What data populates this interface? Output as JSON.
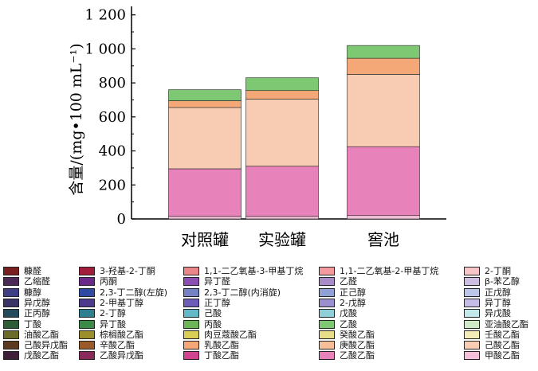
{
  "chart_data": {
    "type": "bar",
    "stacked": true,
    "categories": [
      "对照罐",
      "实验罐",
      "窖池"
    ],
    "ylabel": "含量/(mg•100 mL⁻¹)",
    "ylim": [
      0,
      1250
    ],
    "yticks": [
      0,
      200,
      400,
      600,
      800,
      1000,
      1200
    ],
    "ytick_labels": [
      "0",
      "200",
      "400",
      "600",
      "800",
      "1 000",
      "1 200"
    ],
    "grid": false,
    "legend_position": "bottom",
    "legend_columns": 5,
    "series": [
      {
        "name": "糠醛",
        "color": "#7a1f1f",
        "values": [
          0,
          0,
          0
        ]
      },
      {
        "name": "3-羟基-2-丁酮",
        "color": "#a21d3c",
        "values": [
          0,
          0,
          0
        ]
      },
      {
        "name": "1,1-二乙氧基-3-甲基丁烷",
        "color": "#e8868a",
        "values": [
          0,
          0,
          0
        ]
      },
      {
        "name": "1,1-二乙氧基-2-甲基丁烷",
        "color": "#f29a9e",
        "values": [
          0,
          0,
          0
        ]
      },
      {
        "name": "2-丁酮",
        "color": "#f8c6c8",
        "values": [
          0,
          0,
          0
        ]
      },
      {
        "name": "乙缩醛",
        "color": "#4b2a57",
        "values": [
          0,
          0,
          0
        ]
      },
      {
        "name": "丙酮",
        "color": "#6a2a8a",
        "values": [
          0,
          0,
          0
        ]
      },
      {
        "name": "异丁醛",
        "color": "#8a4fb0",
        "values": [
          0,
          0,
          0
        ]
      },
      {
        "name": "乙醛",
        "color": "#a98bc9",
        "values": [
          0,
          0,
          0
        ]
      },
      {
        "name": "β-苯乙醇",
        "color": "#ccbfe2",
        "values": [
          0,
          0,
          0
        ]
      },
      {
        "name": "糠醇",
        "color": "#3f3f86",
        "values": [
          0,
          0,
          0
        ]
      },
      {
        "name": "2,3-丁二醇(左旋)",
        "color": "#2f4aa3",
        "values": [
          0,
          0,
          0
        ]
      },
      {
        "name": "2,3-丁二醇(内消旋)",
        "color": "#7583c4",
        "values": [
          0,
          0,
          0
        ]
      },
      {
        "name": "正己醇",
        "color": "#8fa0d6",
        "values": [
          0,
          0,
          0
        ]
      },
      {
        "name": "正戊醇",
        "color": "#bcc6e8",
        "values": [
          0,
          0,
          0
        ]
      },
      {
        "name": "异戊醇",
        "color": "#3a3366",
        "values": [
          0,
          0,
          0
        ]
      },
      {
        "name": "2-甲基丁醇",
        "color": "#4c3b8c",
        "values": [
          0,
          0,
          0
        ]
      },
      {
        "name": "正丁醇",
        "color": "#6d5cb8",
        "values": [
          0,
          0,
          0
        ]
      },
      {
        "name": "2-戊醇",
        "color": "#9b8fd0",
        "values": [
          0,
          0,
          0
        ]
      },
      {
        "name": "异丁醇",
        "color": "#c5bde8",
        "values": [
          0,
          0,
          0
        ]
      },
      {
        "name": "正丙醇",
        "color": "#244a5c",
        "values": [
          0,
          0,
          0
        ]
      },
      {
        "name": "2-丁醇",
        "color": "#2e7f8f",
        "values": [
          0,
          0,
          0
        ]
      },
      {
        "name": "己酸",
        "color": "#63b9c8",
        "values": [
          0,
          0,
          0
        ]
      },
      {
        "name": "戊酸",
        "color": "#8fd0d8",
        "values": [
          0,
          0,
          0
        ]
      },
      {
        "name": "异戊酸",
        "color": "#c2e8ec",
        "values": [
          0,
          0,
          0
        ]
      },
      {
        "name": "丁酸",
        "color": "#2d5c36",
        "values": [
          0,
          0,
          0
        ]
      },
      {
        "name": "异丁酸",
        "color": "#3c8a47",
        "values": [
          0,
          0,
          0
        ]
      },
      {
        "name": "丙酸",
        "color": "#6cb457",
        "values": [
          0,
          0,
          0
        ]
      },
      {
        "name": "乙酸",
        "color": "#7ec874",
        "values": [
          65,
          75,
          75
        ]
      },
      {
        "name": "亚油酸乙酯",
        "color": "#cfe9c6",
        "values": [
          0,
          0,
          0
        ]
      },
      {
        "name": "油酸乙酯",
        "color": "#6b6b2a",
        "values": [
          0,
          0,
          0
        ]
      },
      {
        "name": "棕榈酸乙酯",
        "color": "#9a8f2a",
        "values": [
          0,
          0,
          0
        ]
      },
      {
        "name": "肉豆蔻酸乙酯",
        "color": "#d9cf55",
        "values": [
          0,
          0,
          0
        ]
      },
      {
        "name": "癸酸乙酯",
        "color": "#e8de88",
        "values": [
          0,
          0,
          0
        ]
      },
      {
        "name": "壬酸乙酯",
        "color": "#f2ecb8",
        "values": [
          0,
          0,
          0
        ]
      },
      {
        "name": "己酸异戊酯",
        "color": "#5c3a1f",
        "values": [
          0,
          0,
          0
        ]
      },
      {
        "name": "辛酸乙酯",
        "color": "#9a5a2a",
        "values": [
          0,
          0,
          0
        ]
      },
      {
        "name": "乳酸乙酯",
        "color": "#f4a878",
        "values": [
          40,
          50,
          95
        ]
      },
      {
        "name": "庚酸乙酯",
        "color": "#f6bf98",
        "values": [
          0,
          0,
          0
        ]
      },
      {
        "name": "己酸乙酯",
        "color": "#f7ccb2",
        "values": [
          360,
          395,
          425
        ]
      },
      {
        "name": "戊酸乙酯",
        "color": "#3f1f3a",
        "values": [
          0,
          0,
          0
        ]
      },
      {
        "name": "乙酸异戊酯",
        "color": "#8a2a5a",
        "values": [
          0,
          0,
          0
        ]
      },
      {
        "name": "丁酸乙酯",
        "color": "#d2438f",
        "values": [
          0,
          0,
          0
        ]
      },
      {
        "name": "乙酸乙酯",
        "color": "#e882bb",
        "values": [
          280,
          295,
          405
        ]
      },
      {
        "name": "甲酸乙酯",
        "color": "#f4bfd9",
        "values": [
          15,
          15,
          20
        ]
      }
    ]
  }
}
